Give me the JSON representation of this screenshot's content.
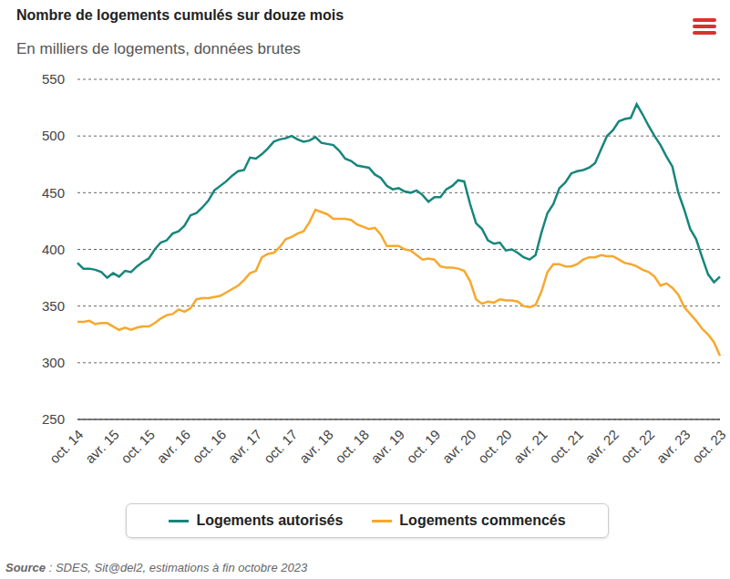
{
  "chart_data": {
    "type": "line",
    "title": "Nombre de logements cumulés sur douze mois",
    "subtitle": "En milliers de logements, données brutes",
    "source": "Source : SDES, Sit@del2, estimations à fin octobre 2023",
    "categories": [
      "oct. 14",
      null,
      null,
      null,
      null,
      null,
      "avr. 15",
      null,
      null,
      null,
      null,
      null,
      "oct. 15",
      null,
      null,
      null,
      null,
      null,
      "avr. 16",
      null,
      null,
      null,
      null,
      null,
      "oct. 16",
      null,
      null,
      null,
      null,
      null,
      "avr. 17",
      null,
      null,
      null,
      null,
      null,
      "oct. 17",
      null,
      null,
      null,
      null,
      null,
      "avr. 18",
      null,
      null,
      null,
      null,
      null,
      "oct. 18",
      null,
      null,
      null,
      null,
      null,
      "avr. 19",
      null,
      null,
      null,
      null,
      null,
      "oct. 19",
      null,
      null,
      null,
      null,
      null,
      "avr. 20",
      null,
      null,
      null,
      null,
      null,
      "oct. 20",
      null,
      null,
      null,
      null,
      null,
      "avr. 21",
      null,
      null,
      null,
      null,
      null,
      "oct. 21",
      null,
      null,
      null,
      null,
      null,
      "avr. 22",
      null,
      null,
      null,
      null,
      null,
      "oct. 22",
      null,
      null,
      null,
      null,
      null,
      "avr. 23",
      null,
      null,
      null,
      null,
      null,
      "oct. 23"
    ],
    "series": [
      {
        "name": "Logements autorisés",
        "color": "#17867c",
        "values": [
          388,
          383,
          383,
          382,
          380,
          375,
          379,
          376,
          381,
          380,
          385,
          389,
          392,
          400,
          406,
          408,
          414,
          416,
          421,
          430,
          432,
          437,
          443,
          452,
          456,
          460,
          465,
          469,
          470,
          481,
          480,
          484,
          489,
          495,
          497,
          498,
          500,
          497,
          495,
          496,
          499,
          494,
          493,
          492,
          487,
          480,
          478,
          474,
          473,
          472,
          466,
          463,
          456,
          453,
          454,
          451,
          450,
          452,
          448,
          442,
          446,
          446,
          453,
          456,
          461,
          460,
          440,
          423,
          418,
          408,
          405,
          406,
          399,
          400,
          397,
          393,
          391,
          395,
          415,
          432,
          440,
          454,
          459,
          467,
          469,
          470,
          472,
          476,
          488,
          500,
          505,
          513,
          515,
          516,
          528,
          519,
          509,
          500,
          492,
          482,
          473,
          450,
          435,
          418,
          409,
          393,
          378,
          371,
          376
        ]
      },
      {
        "name": "Logements commencés",
        "color": "#f7a82e",
        "values": [
          336,
          336,
          337,
          334,
          335,
          335,
          332,
          329,
          331,
          329,
          331,
          332,
          332,
          335,
          339,
          342,
          343,
          347,
          345,
          348,
          356,
          357,
          357,
          358,
          359,
          362,
          365,
          368,
          373,
          379,
          381,
          393,
          396,
          397,
          402,
          409,
          411,
          414,
          416,
          424,
          435,
          433,
          431,
          427,
          427,
          427,
          426,
          422,
          420,
          418,
          419,
          413,
          403,
          403,
          403,
          400,
          399,
          395,
          391,
          392,
          391,
          385,
          384,
          384,
          383,
          381,
          372,
          356,
          352,
          354,
          353,
          356,
          355,
          355,
          354,
          350,
          349,
          351,
          363,
          380,
          387,
          387,
          385,
          385,
          387,
          391,
          393,
          393,
          395,
          394,
          394,
          391,
          388,
          387,
          385,
          382,
          380,
          376,
          368,
          370,
          366,
          360,
          349,
          343,
          337,
          330,
          325,
          318,
          306
        ]
      }
    ],
    "ylim": [
      250,
      550
    ],
    "yticks": [
      250,
      300,
      350,
      400,
      450,
      500,
      550
    ],
    "grid": true,
    "legend": "bottom"
  }
}
